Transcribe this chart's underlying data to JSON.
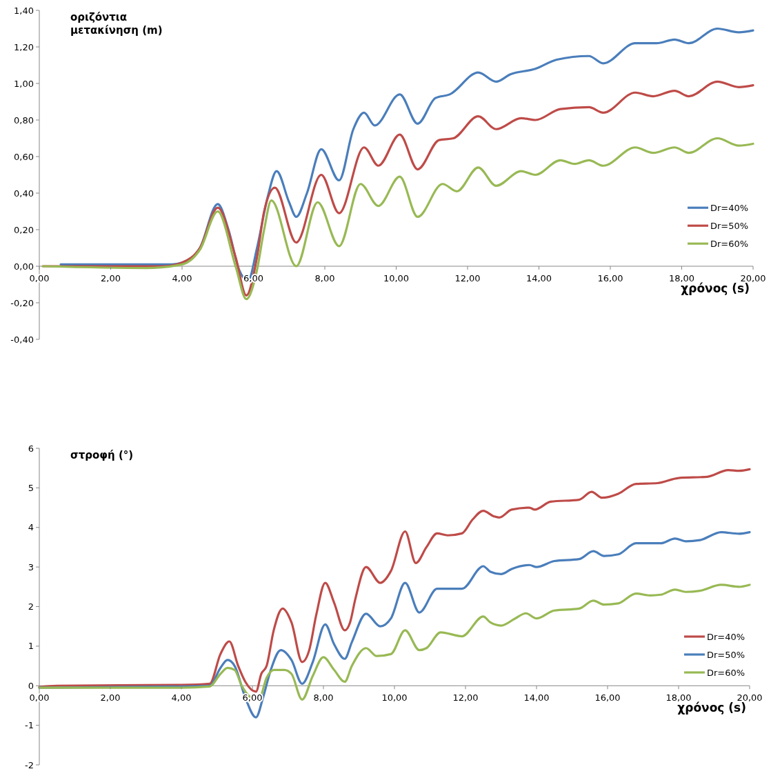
{
  "chart_data": [
    {
      "type": "line",
      "ylabel": "οριζόντια μετακίνηση (m)",
      "xlabel": "χρόνος (s)",
      "legend": "right",
      "grid": false,
      "xlim": [
        0,
        20
      ],
      "ylim": [
        -0.4,
        1.4
      ],
      "xticks": [
        {
          "value": 0,
          "label": "0,00"
        },
        {
          "value": 2,
          "label": "2,00"
        },
        {
          "value": 4,
          "label": "4,00"
        },
        {
          "value": 6,
          "label": "6,00"
        },
        {
          "value": 8,
          "label": "8,00"
        },
        {
          "value": 10,
          "label": "10,00"
        },
        {
          "value": 12,
          "label": "12,00"
        },
        {
          "value": 14,
          "label": "14,00"
        },
        {
          "value": 16,
          "label": "16,00"
        },
        {
          "value": 18,
          "label": "18,00"
        },
        {
          "value": 20,
          "label": "20,00"
        }
      ],
      "yticks": [
        {
          "value": -0.4,
          "label": "-0,40"
        },
        {
          "value": -0.2,
          "label": "-0,20"
        },
        {
          "value": 0,
          "label": "0,00"
        },
        {
          "value": 0.2,
          "label": "0,20"
        },
        {
          "value": 0.4,
          "label": "0,40"
        },
        {
          "value": 0.6,
          "label": "0,60"
        },
        {
          "value": 0.8,
          "label": "0,80"
        },
        {
          "value": 1,
          "label": "1,00"
        },
        {
          "value": 1.2,
          "label": "1,20"
        },
        {
          "value": 1.4,
          "label": "1,40"
        }
      ],
      "series": [
        {
          "name": "Dr=40%",
          "color": "#4a7ebb",
          "x": [
            0.6,
            3.7,
            4.0,
            4.5,
            5.0,
            5.3,
            5.6,
            5.85,
            6.1,
            6.4,
            6.65,
            7.0,
            7.2,
            7.5,
            7.9,
            8.4,
            8.8,
            9.1,
            9.4,
            10.1,
            10.6,
            11.1,
            11.5,
            12.3,
            12.8,
            13.2,
            13.9,
            14.5,
            15.4,
            15.8,
            16.7,
            17.3,
            17.8,
            18.2,
            19.0,
            19.6,
            20.0
          ],
          "values": [
            0.01,
            0.01,
            0.02,
            0.1,
            0.34,
            0.2,
            -0.02,
            -0.08,
            0.1,
            0.38,
            0.52,
            0.35,
            0.27,
            0.4,
            0.64,
            0.47,
            0.75,
            0.84,
            0.77,
            0.94,
            0.78,
            0.92,
            0.94,
            1.06,
            1.01,
            1.05,
            1.08,
            1.13,
            1.15,
            1.11,
            1.22,
            1.22,
            1.24,
            1.22,
            1.3,
            1.28,
            1.29
          ]
        },
        {
          "name": "Dr=50%",
          "color": "#be4b48",
          "x": [
            0.1,
            3.5,
            4.0,
            4.5,
            5.0,
            5.5,
            5.8,
            6.1,
            6.3,
            6.6,
            7.2,
            7.9,
            8.4,
            9.1,
            9.5,
            10.1,
            10.6,
            11.2,
            11.6,
            12.3,
            12.8,
            13.5,
            13.9,
            14.6,
            15.4,
            15.8,
            16.7,
            17.2,
            17.8,
            18.2,
            19.0,
            19.6,
            20.0
          ],
          "values": [
            0,
            0,
            0.02,
            0.1,
            0.32,
            0.05,
            -0.16,
            0.05,
            0.3,
            0.43,
            0.13,
            0.5,
            0.29,
            0.65,
            0.55,
            0.72,
            0.53,
            0.69,
            0.7,
            0.82,
            0.75,
            0.81,
            0.8,
            0.86,
            0.87,
            0.84,
            0.95,
            0.93,
            0.96,
            0.93,
            1.01,
            0.98,
            0.99
          ]
        },
        {
          "name": "Dr=60%",
          "color": "#98b954",
          "x": [
            0.1,
            3.0,
            4.0,
            4.5,
            5.0,
            5.5,
            5.8,
            6.1,
            6.3,
            6.5,
            7.2,
            7.8,
            8.4,
            9.0,
            9.5,
            10.1,
            10.6,
            11.3,
            11.7,
            12.3,
            12.8,
            13.5,
            13.9,
            14.6,
            15.0,
            15.4,
            15.8,
            16.7,
            17.2,
            17.8,
            18.2,
            19.0,
            19.6,
            20.0
          ],
          "values": [
            0,
            -0.01,
            0.01,
            0.09,
            0.3,
            0.0,
            -0.18,
            -0.02,
            0.2,
            0.36,
            0.0,
            0.35,
            0.11,
            0.45,
            0.33,
            0.49,
            0.27,
            0.45,
            0.41,
            0.54,
            0.44,
            0.52,
            0.5,
            0.58,
            0.56,
            0.58,
            0.55,
            0.65,
            0.62,
            0.65,
            0.62,
            0.7,
            0.66,
            0.67
          ]
        }
      ]
    },
    {
      "type": "line",
      "ylabel": "στροφή (°)",
      "xlabel": "χρόνος (s)",
      "legend": "bottom right",
      "grid": false,
      "xlim": [
        0,
        20
      ],
      "ylim": [
        -2,
        6
      ],
      "xticks": [
        {
          "value": 0,
          "label": "0,00"
        },
        {
          "value": 2,
          "label": "2,00"
        },
        {
          "value": 4,
          "label": "4,00"
        },
        {
          "value": 6,
          "label": "6,00"
        },
        {
          "value": 8,
          "label": "8,00"
        },
        {
          "value": 10,
          "label": "10,00"
        },
        {
          "value": 12,
          "label": "12,00"
        },
        {
          "value": 14,
          "label": "14,00"
        },
        {
          "value": 16,
          "label": "16,00"
        },
        {
          "value": 18,
          "label": "18,00"
        },
        {
          "value": 20,
          "label": "20,00"
        }
      ],
      "yticks": [
        -2,
        -1,
        0,
        1,
        2,
        3,
        4,
        5,
        6
      ],
      "series": [
        {
          "name": "Dr=40%",
          "color": "#be4b48",
          "x": [
            0.0,
            0.5,
            4.0,
            4.8,
            5.1,
            5.35,
            5.6,
            5.8,
            6.1,
            6.25,
            6.4,
            6.6,
            6.85,
            7.1,
            7.4,
            7.6,
            7.8,
            8.05,
            8.3,
            8.6,
            8.75,
            8.9,
            9.2,
            9.6,
            9.9,
            10.3,
            10.6,
            10.9,
            11.2,
            11.5,
            11.9,
            12.2,
            12.5,
            12.8,
            12.95,
            13.3,
            13.8,
            13.95,
            14.4,
            15.2,
            15.55,
            15.85,
            16.3,
            16.8,
            17.4,
            18.0,
            18.8,
            19.4,
            19.7,
            20.0
          ],
          "values": [
            -0.03,
            0,
            0.02,
            0.05,
            0.8,
            1.12,
            0.5,
            0.1,
            -0.15,
            0.3,
            0.5,
            1.4,
            1.95,
            1.6,
            0.6,
            0.9,
            1.8,
            2.6,
            2.1,
            1.4,
            1.6,
            2.2,
            3.0,
            2.6,
            2.9,
            3.9,
            3.1,
            3.5,
            3.85,
            3.8,
            3.85,
            4.2,
            4.42,
            4.28,
            4.25,
            4.45,
            4.5,
            4.45,
            4.65,
            4.7,
            4.9,
            4.75,
            4.85,
            5.1,
            5.12,
            5.25,
            5.28,
            5.45,
            5.43,
            5.47
          ]
        },
        {
          "name": "Dr=50%",
          "color": "#4a7ebb",
          "x": [
            0.0,
            4.0,
            4.8,
            5.1,
            5.3,
            5.5,
            5.8,
            6.1,
            6.3,
            6.5,
            6.8,
            7.1,
            7.4,
            7.7,
            8.05,
            8.3,
            8.6,
            8.8,
            9.2,
            9.6,
            9.9,
            10.3,
            10.7,
            11.2,
            11.9,
            12.5,
            12.7,
            13.0,
            13.3,
            13.8,
            14.0,
            14.5,
            15.2,
            15.6,
            15.9,
            16.3,
            16.8,
            17.2,
            17.5,
            17.9,
            18.2,
            18.6,
            19.2,
            19.7,
            20.0
          ],
          "values": [
            -0.05,
            -0.02,
            0,
            0.45,
            0.65,
            0.5,
            -0.3,
            -0.8,
            -0.3,
            0.35,
            0.9,
            0.65,
            0.05,
            0.6,
            1.55,
            1.05,
            0.68,
            1.1,
            1.82,
            1.5,
            1.7,
            2.6,
            1.85,
            2.45,
            2.45,
            3.02,
            2.88,
            2.82,
            2.95,
            3.05,
            3.0,
            3.15,
            3.2,
            3.4,
            3.28,
            3.32,
            3.6,
            3.6,
            3.6,
            3.72,
            3.65,
            3.68,
            3.88,
            3.84,
            3.88
          ]
        },
        {
          "name": "Dr=60%",
          "color": "#98b954",
          "x": [
            0.0,
            4.0,
            4.8,
            5.1,
            5.3,
            5.5,
            5.7,
            6.0,
            6.2,
            6.4,
            6.6,
            6.9,
            7.1,
            7.4,
            7.7,
            8.0,
            8.3,
            8.6,
            8.8,
            9.2,
            9.5,
            9.9,
            10.3,
            10.7,
            10.9,
            11.3,
            11.9,
            12.5,
            12.7,
            13.0,
            13.4,
            13.7,
            14.0,
            14.5,
            15.2,
            15.6,
            15.9,
            16.3,
            16.8,
            17.2,
            17.5,
            17.9,
            18.2,
            18.6,
            19.2,
            19.7,
            20.0
          ],
          "values": [
            -0.05,
            -0.05,
            -0.02,
            0.3,
            0.45,
            0.4,
            0.0,
            -0.3,
            -0.3,
            0.2,
            0.4,
            0.4,
            0.3,
            -0.35,
            0.25,
            0.72,
            0.4,
            0.1,
            0.5,
            0.95,
            0.75,
            0.8,
            1.4,
            0.9,
            0.95,
            1.35,
            1.25,
            1.75,
            1.6,
            1.52,
            1.7,
            1.83,
            1.7,
            1.9,
            1.95,
            2.15,
            2.05,
            2.08,
            2.33,
            2.28,
            2.3,
            2.43,
            2.37,
            2.4,
            2.55,
            2.5,
            2.55
          ]
        }
      ]
    }
  ]
}
